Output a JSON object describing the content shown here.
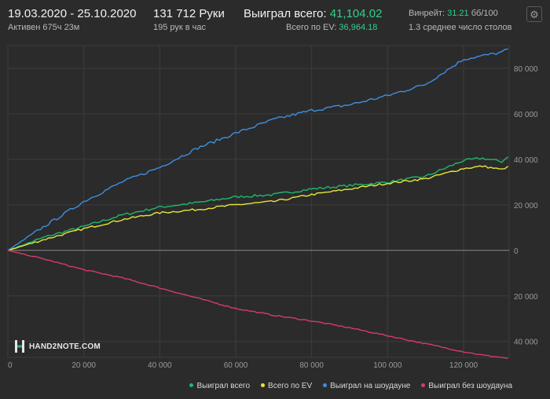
{
  "header": {
    "date_range": "19.03.2020 - 25.10.2020",
    "active": "Активен 675ч 23м",
    "hands": "131 712 Руки",
    "hands_per_hour": "195 рук в час",
    "won_label": "Выиграл всего:",
    "won_value": "41,104.02",
    "ev_label": "Всего по EV:",
    "ev_value": "36,964.18",
    "winrate_label": "Винрейт:",
    "winrate_value": "31.21",
    "winrate_unit": "бб/100",
    "tables": "1.3 среднее число столов"
  },
  "logo_text": "HAND2NOTE.COM",
  "icons": {
    "settings": "gear-icon",
    "logo": "hand2note-logo-icon"
  },
  "colors": {
    "background": "#2b2b2b",
    "green": "#21b86b",
    "yellow": "#e6e63a",
    "blue": "#3d8fe0",
    "red": "#d83a6a"
  },
  "chart_data": {
    "type": "line",
    "xlabel": "",
    "ylabel": "",
    "xlim": [
      0,
      132000
    ],
    "ylim": [
      -47000,
      90000
    ],
    "x_ticks": [
      0,
      20000,
      40000,
      60000,
      80000,
      100000,
      120000
    ],
    "x_tick_labels": [
      "0",
      "20 000",
      "40 000",
      "60 000",
      "80 000",
      "100 000",
      "120 000"
    ],
    "y_ticks": [
      80000,
      60000,
      40000,
      20000,
      0,
      -20000,
      -40000
    ],
    "y_tick_labels": [
      "80 000",
      "60 000",
      "40 000",
      "20 000",
      "0",
      "20 000",
      "40 000"
    ],
    "grid": true,
    "legend_position": "bottom-right",
    "x": [
      0,
      10000,
      20000,
      30000,
      40000,
      50000,
      60000,
      70000,
      80000,
      90000,
      100000,
      110000,
      120000,
      125000,
      130000,
      131712
    ],
    "series": [
      {
        "name": "Выиграл всего",
        "color": "#21b86b",
        "values": [
          0,
          6000,
          10500,
          15500,
          19000,
          21000,
          23500,
          24500,
          27000,
          28500,
          30000,
          32500,
          39500,
          40500,
          39000,
          41104
        ]
      },
      {
        "name": "Всего по EV",
        "color": "#e6e63a",
        "values": [
          0,
          5000,
          9500,
          13500,
          16500,
          18000,
          20000,
          21500,
          24500,
          27000,
          29500,
          31500,
          36000,
          37000,
          35500,
          36964
        ]
      },
      {
        "name": "Выиграл на шоудауне",
        "color": "#3d8fe0",
        "values": [
          0,
          11000,
          21500,
          30000,
          36500,
          45000,
          51500,
          57500,
          61500,
          64000,
          68000,
          73000,
          84000,
          85500,
          87000,
          88500
        ]
      },
      {
        "name": "Выиграл без шоудауна",
        "color": "#d83a6a",
        "values": [
          0,
          -4000,
          -8500,
          -12000,
          -16500,
          -21000,
          -25500,
          -28500,
          -31000,
          -34000,
          -37500,
          -41000,
          -44500,
          -46000,
          -47000,
          -47400
        ]
      }
    ]
  }
}
